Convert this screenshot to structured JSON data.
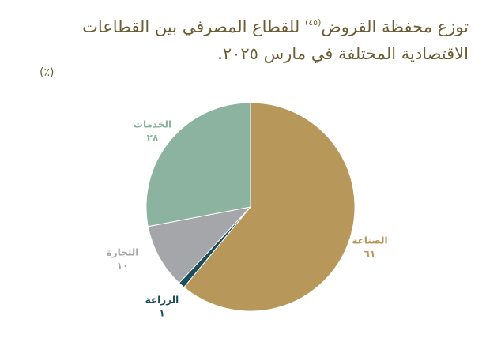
{
  "chart_data": {
    "type": "pie",
    "title_parts": [
      "توزع محفظة القروض",
      "(٤٥)",
      "للقطاع المصرفي بين القطاعات الاقتصادية المختلفة في مارس ٢٠٢٥."
    ],
    "subtitle": "(٪)",
    "categories": [
      "الصناعة",
      "الزراعة",
      "التجارة",
      "الخدمات"
    ],
    "values": [
      61,
      1,
      10,
      28
    ],
    "value_labels": [
      "٦١",
      "١",
      "١٠",
      "٢٨"
    ],
    "colors": [
      "#b8975a",
      "#1c4d5a",
      "#a4a6a9",
      "#8cb39f"
    ]
  }
}
